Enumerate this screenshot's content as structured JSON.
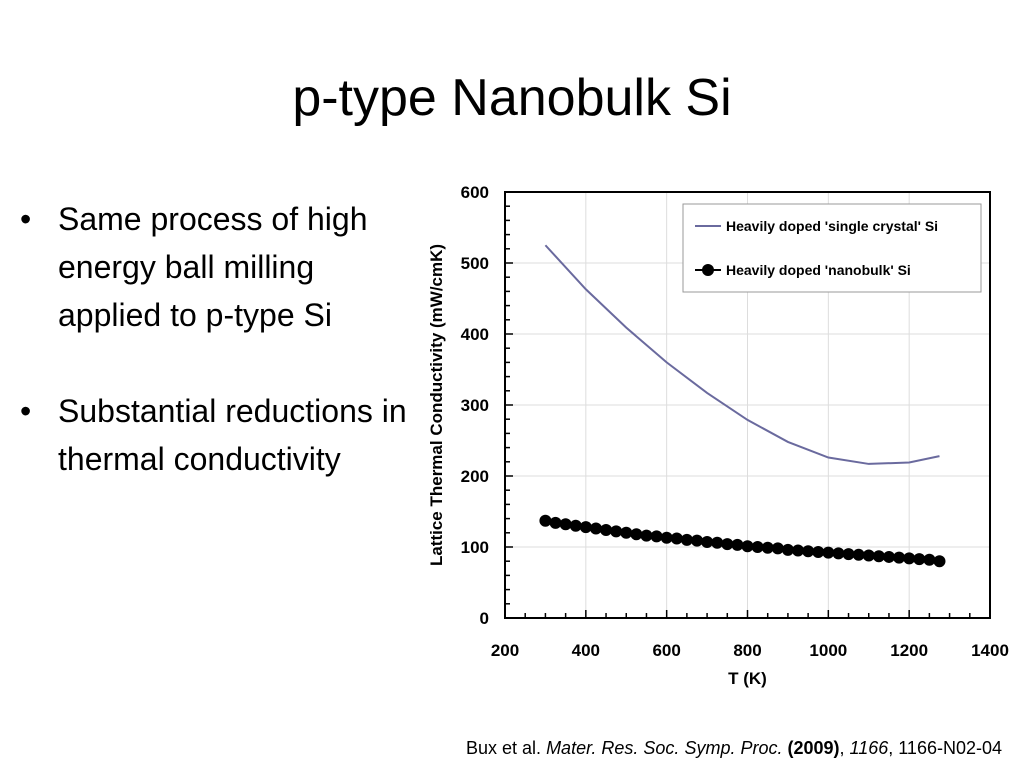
{
  "slide": {
    "title": "p-type Nanobulk Si",
    "bullets": [
      "Same process of high energy ball milling applied to p-type Si",
      "Substantial reductions in thermal conductivity"
    ],
    "bullet_symbol": "•"
  },
  "citation": {
    "authors": "Bux et al.",
    "journal": "Mater. Res. Soc. Symp. Proc.",
    "year": "(2009)",
    "volume": "1166",
    "pages": ", 1166-N02-04"
  },
  "chart_data": {
    "type": "line",
    "xlabel": "T (K)",
    "ylabel": "Lattice Thermal Conductivity (mW/cmK)",
    "xlim": [
      200,
      1400
    ],
    "ylim": [
      0,
      600
    ],
    "xticks": [
      200,
      400,
      600,
      800,
      1000,
      1200,
      1400
    ],
    "yticks": [
      0,
      100,
      200,
      300,
      400,
      500,
      600
    ],
    "grid": true,
    "legend_position": "top-right",
    "series": [
      {
        "name": "Heavily doped 'single crystal' Si",
        "color": "#6a6a9e",
        "marker": "none",
        "x": [
          300,
          400,
          500,
          600,
          700,
          800,
          900,
          1000,
          1100,
          1200,
          1275
        ],
        "y": [
          525,
          463,
          409,
          360,
          317,
          279,
          248,
          226,
          217,
          219,
          228
        ]
      },
      {
        "name": "Heavily doped 'nanobulk' Si",
        "color": "#000000",
        "marker": "circle",
        "x": [
          300,
          325,
          350,
          375,
          400,
          425,
          450,
          475,
          500,
          525,
          550,
          575,
          600,
          625,
          650,
          675,
          700,
          725,
          750,
          775,
          800,
          825,
          850,
          875,
          900,
          925,
          950,
          975,
          1000,
          1025,
          1050,
          1075,
          1100,
          1125,
          1150,
          1175,
          1200,
          1225,
          1250,
          1275
        ],
        "y": [
          137,
          134,
          132,
          130,
          128,
          126,
          124,
          122,
          120,
          118,
          116,
          115,
          113,
          112,
          110,
          109,
          107,
          106,
          104,
          103,
          101,
          100,
          99,
          98,
          96,
          95,
          94,
          93,
          92,
          91,
          90,
          89,
          88,
          87,
          86,
          85,
          84,
          83,
          82,
          80
        ]
      }
    ]
  }
}
